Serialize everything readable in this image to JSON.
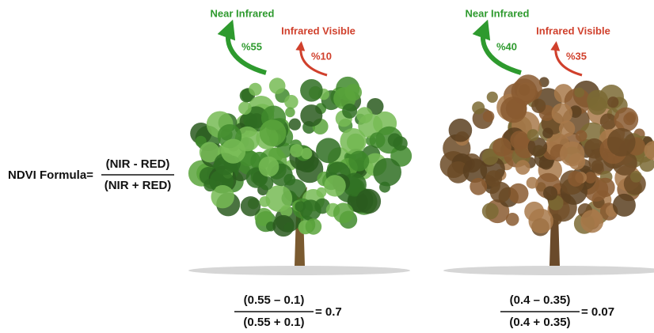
{
  "formula": {
    "label": "NDVI Formula=",
    "numerator": "(NIR  -  RED)",
    "denominator": "(NIR + RED)"
  },
  "trees": [
    {
      "nir_label": "Near Infrared",
      "nir_value": "%55",
      "red_label": "Infrared Visible",
      "red_value": "%10",
      "numerator": "(0.55  –  0.1)",
      "denominator": "(0.55  +  0.1)",
      "result": "= 0.7"
    },
    {
      "nir_label": "Near Infrared",
      "nir_value": "%40",
      "red_label": "Infrared Visible",
      "red_value": "%35",
      "numerator": "(0.4  –  0.35)",
      "denominator": "(0.4  +  0.35)",
      "result": "= 0.07"
    }
  ]
}
